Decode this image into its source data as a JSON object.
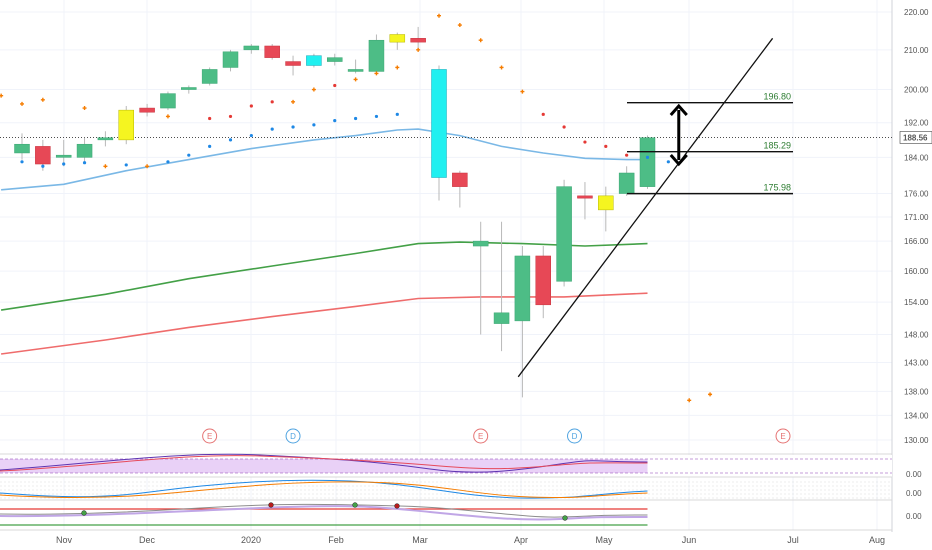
{
  "chart_data": {
    "type": "candlestick",
    "y_axis": {
      "ticks": [
        "220.00",
        "210.00",
        "200.00",
        "192.00",
        "184.00",
        "176.00",
        "171.00",
        "166.00",
        "160.00",
        "154.00",
        "148.00",
        "143.00",
        "138.00",
        "134.00",
        "130.00"
      ],
      "ylim": [
        128,
        222
      ],
      "scale": "log"
    },
    "x_axis": {
      "labels": [
        {
          "text": "Nov",
          "month": "2019-11"
        },
        {
          "text": "Dec",
          "month": "2019-12"
        },
        {
          "text": "2020",
          "month": "2020-01"
        },
        {
          "text": "Feb",
          "month": "2020-02"
        },
        {
          "text": "Mar",
          "month": "2020-03"
        },
        {
          "text": "Apr",
          "month": "2020-04"
        },
        {
          "text": "May",
          "month": "2020-05"
        },
        {
          "text": "Jun",
          "month": "2020-06"
        },
        {
          "text": "Jul",
          "month": "2020-07"
        },
        {
          "text": "Aug",
          "month": "2020-08"
        }
      ]
    },
    "candles": [
      {
        "week": 0,
        "o": 187.0,
        "h": 189.5,
        "l": 183.5,
        "c": 185.0,
        "color": "green"
      },
      {
        "week": 1,
        "o": 186.5,
        "h": 188.0,
        "l": 181.0,
        "c": 182.5,
        "color": "red"
      },
      {
        "week": 2,
        "o": 184.0,
        "h": 188.0,
        "l": 182.0,
        "c": 184.5,
        "color": "green"
      },
      {
        "week": 3,
        "o": 184.0,
        "h": 188.5,
        "l": 182.5,
        "c": 187.0,
        "color": "green"
      },
      {
        "week": 4,
        "o": 188.0,
        "h": 190.0,
        "l": 186.5,
        "c": 188.5,
        "color": "green"
      },
      {
        "week": 5,
        "o": 188.0,
        "h": 196.0,
        "l": 187.0,
        "c": 195.0,
        "color": "yellow"
      },
      {
        "week": 6,
        "o": 194.5,
        "h": 196.5,
        "l": 193.5,
        "c": 195.5,
        "color": "red"
      },
      {
        "week": 7,
        "o": 195.5,
        "h": 199.5,
        "l": 195.0,
        "c": 199.0,
        "color": "green"
      },
      {
        "week": 8,
        "o": 200.0,
        "h": 201.0,
        "l": 199.0,
        "c": 200.5,
        "color": "green"
      },
      {
        "week": 9,
        "o": 201.5,
        "h": 205.5,
        "l": 201.0,
        "c": 205.0,
        "color": "green"
      },
      {
        "week": 10,
        "o": 205.5,
        "h": 210.0,
        "l": 204.5,
        "c": 209.5,
        "color": "green"
      },
      {
        "week": 11,
        "o": 210.0,
        "h": 211.5,
        "l": 209.0,
        "c": 211.0,
        "color": "green"
      },
      {
        "week": 12,
        "o": 211.0,
        "h": 211.5,
        "l": 207.5,
        "c": 208.0,
        "color": "red"
      },
      {
        "week": 13,
        "o": 207.0,
        "h": 208.5,
        "l": 203.5,
        "c": 206.0,
        "color": "red"
      },
      {
        "week": 14,
        "o": 206.0,
        "h": 209.0,
        "l": 205.5,
        "c": 208.5,
        "color": "cyan"
      },
      {
        "week": 15,
        "o": 207.0,
        "h": 209.0,
        "l": 206.0,
        "c": 208.0,
        "color": "green"
      },
      {
        "week": 16,
        "o": 204.5,
        "h": 207.5,
        "l": 204.0,
        "c": 205.0,
        "color": "green"
      },
      {
        "week": 17,
        "o": 204.5,
        "h": 214.0,
        "l": 204.0,
        "c": 212.5,
        "color": "green"
      },
      {
        "week": 18,
        "o": 212.0,
        "h": 214.5,
        "l": 210.0,
        "c": 214.0,
        "color": "yellow"
      },
      {
        "week": 19,
        "o": 213.0,
        "h": 216.0,
        "l": 210.0,
        "c": 212.0,
        "color": "red"
      },
      {
        "week": 20,
        "o": 205.0,
        "h": 206.0,
        "l": 174.5,
        "c": 179.5,
        "color": "cyan"
      },
      {
        "week": 21,
        "o": 180.5,
        "h": 181.0,
        "l": 173.0,
        "c": 177.5,
        "color": "red"
      },
      {
        "week": 22,
        "o": 165.0,
        "h": 170.0,
        "l": 148.0,
        "c": 166.0,
        "color": "green"
      },
      {
        "week": 23,
        "o": 150.0,
        "h": 170.0,
        "l": 145.0,
        "c": 152.0,
        "color": "green"
      },
      {
        "week": 24,
        "o": 150.5,
        "h": 165.0,
        "l": 137.0,
        "c": 163.0,
        "color": "green"
      },
      {
        "week": 25,
        "o": 163.0,
        "h": 165.0,
        "l": 151.0,
        "c": 153.5,
        "color": "red"
      },
      {
        "week": 26,
        "o": 158.0,
        "h": 179.0,
        "l": 157.0,
        "c": 177.5,
        "color": "green"
      },
      {
        "week": 27,
        "o": 175.5,
        "h": 178.5,
        "l": 170.5,
        "c": 175.0,
        "color": "red"
      },
      {
        "week": 28,
        "o": 172.5,
        "h": 177.5,
        "l": 168.0,
        "c": 175.5,
        "color": "yellow"
      },
      {
        "week": 29,
        "o": 176.0,
        "h": 182.0,
        "l": 175.5,
        "c": 180.5,
        "color": "green"
      },
      {
        "week": 30,
        "o": 177.5,
        "h": 189.0,
        "l": 177.0,
        "c": 188.5,
        "color": "green"
      }
    ],
    "moving_averages": [
      {
        "color": "#7ab8e6",
        "points": [
          [
            -1,
            176.8
          ],
          [
            2,
            178.0
          ],
          [
            5,
            181.0
          ],
          [
            8,
            183.5
          ],
          [
            11,
            186.0
          ],
          [
            14,
            188.0
          ],
          [
            16,
            189.0
          ],
          [
            18,
            190.3
          ],
          [
            19,
            190.5
          ],
          [
            21,
            189.0
          ],
          [
            23,
            186.5
          ],
          [
            25,
            185.0
          ],
          [
            27,
            183.8
          ],
          [
            29,
            183.5
          ],
          [
            30,
            183.5
          ]
        ]
      },
      {
        "color": "#43a047",
        "points": [
          [
            -1,
            152.5
          ],
          [
            4,
            155.5
          ],
          [
            8,
            158.5
          ],
          [
            12,
            161.0
          ],
          [
            16,
            163.5
          ],
          [
            19,
            165.5
          ],
          [
            21,
            165.8
          ],
          [
            24,
            165.5
          ],
          [
            27,
            165.0
          ],
          [
            30,
            165.5
          ]
        ]
      },
      {
        "color": "#ef6c6c",
        "points": [
          [
            -1,
            144.5
          ],
          [
            4,
            147.0
          ],
          [
            8,
            149.3
          ],
          [
            12,
            151.3
          ],
          [
            16,
            153.2
          ],
          [
            19,
            154.7
          ],
          [
            22,
            155.0
          ],
          [
            26,
            155.0
          ],
          [
            30,
            155.7
          ]
        ]
      }
    ],
    "psar_dots": [
      {
        "week": 0,
        "value": 183.0,
        "color": "#1e88e5"
      },
      {
        "week": 1,
        "value": 182.0,
        "color": "#1e88e5"
      },
      {
        "week": 2,
        "value": 182.5,
        "color": "#1e88e5"
      },
      {
        "week": 3,
        "value": 182.8,
        "color": "#1e88e5"
      },
      {
        "week": 4,
        "value": 182.0,
        "color": "#f57c00"
      },
      {
        "week": 5,
        "value": 182.3,
        "color": "#1e88e5"
      },
      {
        "week": 6,
        "value": 182.0,
        "color": "#f57c00"
      },
      {
        "week": 7,
        "value": 183.0,
        "color": "#1e88e5"
      },
      {
        "week": 8,
        "value": 184.5,
        "color": "#1e88e5"
      },
      {
        "week": 9,
        "value": 186.5,
        "color": "#1e88e5"
      },
      {
        "week": 10,
        "value": 188.0,
        "color": "#1e88e5"
      },
      {
        "week": 11,
        "value": 189.0,
        "color": "#1e88e5"
      },
      {
        "week": 12,
        "value": 190.5,
        "color": "#1e88e5"
      },
      {
        "week": 13,
        "value": 191.0,
        "color": "#1e88e5"
      },
      {
        "week": 14,
        "value": 191.5,
        "color": "#1e88e5"
      },
      {
        "week": 15,
        "value": 192.5,
        "color": "#1e88e5"
      },
      {
        "week": 16,
        "value": 193.0,
        "color": "#1e88e5"
      },
      {
        "week": 17,
        "value": 193.5,
        "color": "#1e88e5"
      },
      {
        "week": 18,
        "value": 194.0,
        "color": "#1e88e5"
      },
      {
        "week": -1,
        "value": 198.5,
        "color": "#f57c00"
      },
      {
        "week": 0,
        "value": 196.5,
        "color": "#f57c00"
      },
      {
        "week": 1,
        "value": 197.5,
        "color": "#f57c00"
      },
      {
        "week": 3,
        "value": 195.5,
        "color": "#f57c00"
      },
      {
        "week": 7,
        "value": 193.5,
        "color": "#f57c00"
      },
      {
        "week": 9,
        "value": 193.0,
        "color": "#e53935"
      },
      {
        "week": 10,
        "value": 193.5,
        "color": "#e53935"
      },
      {
        "week": 11,
        "value": 196.0,
        "color": "#e53935"
      },
      {
        "week": 12,
        "value": 197.0,
        "color": "#e53935"
      },
      {
        "week": 13,
        "value": 197.0,
        "color": "#f57c00"
      },
      {
        "week": 14,
        "value": 200.0,
        "color": "#f57c00"
      },
      {
        "week": 15,
        "value": 201.0,
        "color": "#e53935"
      },
      {
        "week": 16,
        "value": 202.5,
        "color": "#f57c00"
      },
      {
        "week": 17,
        "value": 204.0,
        "color": "#f57c00"
      },
      {
        "week": 18,
        "value": 205.5,
        "color": "#f57c00"
      },
      {
        "week": 19,
        "value": 210.0,
        "color": "#f57c00"
      },
      {
        "week": 20,
        "value": 219.0,
        "color": "#f57c00"
      },
      {
        "week": 21,
        "value": 216.5,
        "color": "#f57c00"
      },
      {
        "week": 22,
        "value": 212.5,
        "color": "#f57c00"
      },
      {
        "week": 23,
        "value": 205.5,
        "color": "#f57c00"
      },
      {
        "week": 24,
        "value": 199.5,
        "color": "#f57c00"
      },
      {
        "week": 25,
        "value": 194.0,
        "color": "#e53935"
      },
      {
        "week": 26,
        "value": 191.0,
        "color": "#e53935"
      },
      {
        "week": 27,
        "value": 187.5,
        "color": "#e53935"
      },
      {
        "week": 28,
        "value": 186.5,
        "color": "#e53935"
      },
      {
        "week": 29,
        "value": 184.5,
        "color": "#e53935"
      },
      {
        "week": 30,
        "value": 184.0,
        "color": "#1e88e5"
      },
      {
        "week": 31,
        "value": 183.0,
        "color": "#1e88e5"
      },
      {
        "week": 32,
        "value": 136.5,
        "color": "#f57c00"
      },
      {
        "week": 33,
        "value": 137.5,
        "color": "#f57c00"
      }
    ],
    "current_price": {
      "value": 188.56,
      "label": "188.56"
    },
    "levels": [
      {
        "value": 196.8,
        "label": "196.80"
      },
      {
        "value": 185.29,
        "label": "185.29"
      },
      {
        "value": 175.98,
        "label": "175.98"
      }
    ],
    "trendline": {
      "from": [
        23.8,
        140.5
      ],
      "to": [
        36.0,
        213.0
      ]
    },
    "double_arrow": {
      "week": 31.5,
      "top": 196.0,
      "bottom": 182.5
    },
    "events": [
      {
        "type": "E",
        "week": 9,
        "color": "#e57373"
      },
      {
        "type": "D",
        "week": 13,
        "color": "#4fa3e0"
      },
      {
        "type": "E",
        "week": 22,
        "color": "#e57373"
      },
      {
        "type": "D",
        "week": 26.5,
        "color": "#4fa3e0"
      },
      {
        "type": "E",
        "week": 36.5,
        "color": "#e57373"
      }
    ],
    "indicator_panes": [
      {
        "label": "0.00"
      },
      {
        "label": "0.00"
      },
      {
        "label": "0.00"
      }
    ]
  }
}
